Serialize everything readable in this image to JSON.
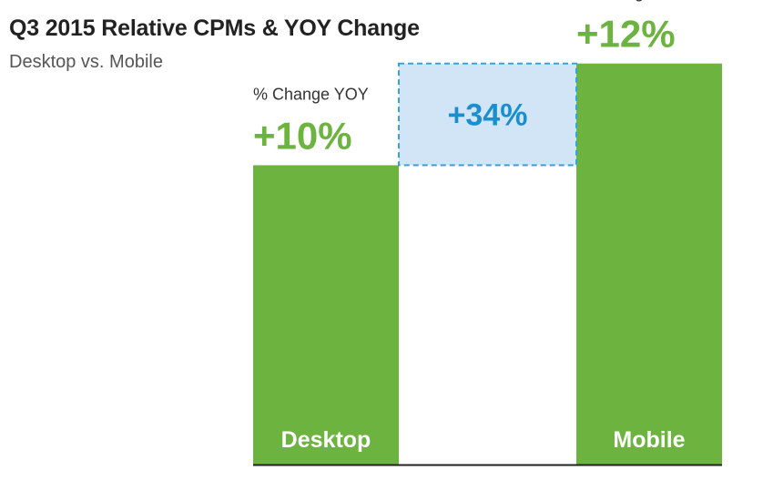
{
  "header": {
    "title": "Q3 2015 Relative CPMs & YOY Change",
    "subtitle": "Desktop vs. Mobile"
  },
  "colors": {
    "bar": "#6cb33f",
    "value_text": "#6cb33f",
    "change_text": "#1a8fd0",
    "change_fill": "#d2e5f7",
    "change_border": "#36a3dc",
    "axis": "#222222",
    "caption_text": "#333333"
  },
  "chart_data": {
    "type": "bar",
    "categories": [
      "Desktop",
      "Mobile"
    ],
    "values": [
      1.0,
      1.34
    ],
    "ylim": [
      0,
      1.4
    ],
    "yoy_caption": "% Change YOY",
    "yoy_changes": [
      "+10%",
      "+12%"
    ],
    "relative_difference": {
      "label": "+34%",
      "from": "Desktop",
      "to": "Mobile"
    },
    "grid": false,
    "legend": "none"
  }
}
